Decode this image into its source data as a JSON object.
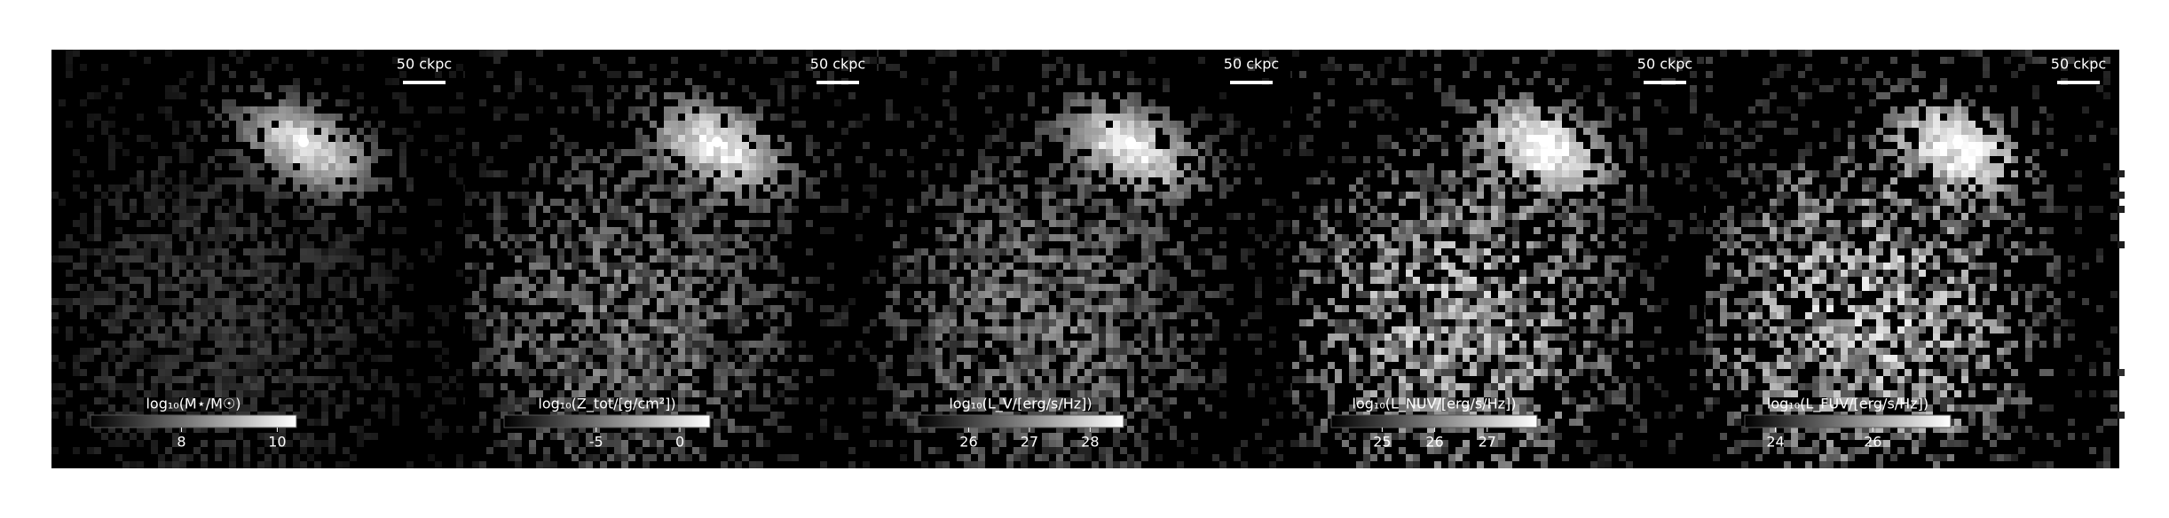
{
  "panels": [
    {
      "scale_bar": "50 ckpc",
      "colorbar": {
        "label": "log₁₀(M⋆/M☉)",
        "range": [
          6.1,
          10.4
        ],
        "ticks": [
          8,
          10
        ]
      }
    },
    {
      "scale_bar": "50 ckpc",
      "colorbar": {
        "label": "log₁₀(Z_tot/[g/cm²])",
        "range": [
          -10.5,
          1.8
        ],
        "ticks": [
          -5,
          0
        ]
      }
    },
    {
      "scale_bar": "50 ckpc",
      "colorbar": {
        "label": "log₁₀(L_V/[erg/s/Hz])",
        "range": [
          25.16,
          28.55
        ],
        "ticks": [
          26,
          27,
          28
        ]
      }
    },
    {
      "scale_bar": "50 ckpc",
      "colorbar": {
        "label": "log₁₀(L_NUV/[erg/s/Hz])",
        "range": [
          24.03,
          27.95
        ],
        "ticks": [
          25,
          26,
          27
        ]
      }
    },
    {
      "scale_bar": "50 ckpc",
      "colorbar": {
        "label": "log₁₀(L_FUV/[erg/s/Hz])",
        "range": [
          23.37,
          27.6
        ],
        "ticks": [
          24,
          26
        ]
      }
    }
  ]
}
